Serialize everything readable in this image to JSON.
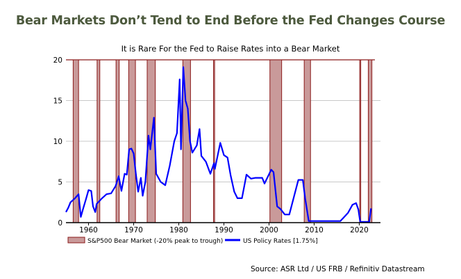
{
  "header": {
    "title": "Bear Markets Don’t Tend to End Before the Fed Changes Course",
    "source": "Source: ASR Ltd / US FRB / Refinitiv Datastream"
  },
  "chart_data": {
    "type": "line",
    "title": "It is Rare For the Fed to Raise Rates into a Bear Market",
    "xlabel": "",
    "ylabel": "",
    "xlim": [
      1955,
      2024.7
    ],
    "ylim": [
      0,
      20
    ],
    "x_ticks": [
      "1960",
      "1970",
      "1980",
      "1990",
      "2000",
      "2010",
      "2020"
    ],
    "y_ticks": [
      "0",
      "5",
      "10",
      "15",
      "20"
    ],
    "grid": true,
    "legend": "bottom",
    "colors": {
      "bear_fill": "#c99a9a",
      "bear_edge": "#8b1a1a",
      "rate_line": "#0000ff",
      "title": "#4d5a3e"
    },
    "bear_markets": {
      "name": "S&P500 Bear Market (-20% peak to trough)",
      "periods": [
        [
          1956.6,
          1957.8
        ],
        [
          1961.9,
          1962.5
        ],
        [
          1966.1,
          1966.8
        ],
        [
          1968.9,
          1970.4
        ],
        [
          1973.0,
          1974.8
        ],
        [
          1980.9,
          1982.6
        ],
        [
          1987.7,
          1987.95
        ],
        [
          2000.2,
          2002.8
        ],
        [
          2007.8,
          2009.2
        ],
        [
          2020.1,
          2020.3
        ],
        [
          2022.0,
          2022.8
        ]
      ]
    },
    "series": [
      {
        "name": "US Policy Rates [1.75%]",
        "points": [
          [
            1955,
            1.3
          ],
          [
            1955.5,
            1.8
          ],
          [
            1956,
            2.5
          ],
          [
            1957,
            3.0
          ],
          [
            1957.8,
            3.5
          ],
          [
            1958.3,
            0.7
          ],
          [
            1958.8,
            1.7
          ],
          [
            1959.5,
            3.0
          ],
          [
            1960,
            4.0
          ],
          [
            1960.6,
            3.9
          ],
          [
            1961,
            2.0
          ],
          [
            1961.5,
            1.3
          ],
          [
            1961.8,
            2.3
          ],
          [
            1962.5,
            2.7
          ],
          [
            1963,
            3.0
          ],
          [
            1964,
            3.5
          ],
          [
            1965,
            3.6
          ],
          [
            1966,
            4.5
          ],
          [
            1966.7,
            5.7
          ],
          [
            1967.3,
            3.9
          ],
          [
            1968,
            6.0
          ],
          [
            1968.5,
            5.9
          ],
          [
            1969,
            9.0
          ],
          [
            1969.5,
            9.1
          ],
          [
            1970,
            8.5
          ],
          [
            1970.5,
            6.0
          ],
          [
            1971,
            3.8
          ],
          [
            1971.6,
            5.5
          ],
          [
            1972,
            3.3
          ],
          [
            1972.6,
            5.0
          ],
          [
            1973.3,
            10.7
          ],
          [
            1973.7,
            9.0
          ],
          [
            1974.5,
            12.9
          ],
          [
            1975,
            6.0
          ],
          [
            1976,
            5.0
          ],
          [
            1977,
            4.6
          ],
          [
            1978,
            7.0
          ],
          [
            1979,
            10.0
          ],
          [
            1979.6,
            11.0
          ],
          [
            1980.2,
            17.6
          ],
          [
            1980.5,
            9.0
          ],
          [
            1981,
            19.1
          ],
          [
            1981.5,
            15.0
          ],
          [
            1982,
            14.0
          ],
          [
            1982.5,
            10.0
          ],
          [
            1983,
            8.6
          ],
          [
            1984,
            9.5
          ],
          [
            1984.6,
            11.5
          ],
          [
            1985,
            8.2
          ],
          [
            1986,
            7.5
          ],
          [
            1987,
            6.0
          ],
          [
            1987.8,
            7.3
          ],
          [
            1988,
            6.6
          ],
          [
            1989.2,
            9.8
          ],
          [
            1990,
            8.3
          ],
          [
            1990.8,
            8.0
          ],
          [
            1991.5,
            5.8
          ],
          [
            1992.3,
            3.8
          ],
          [
            1993,
            3.0
          ],
          [
            1994,
            3.0
          ],
          [
            1995,
            5.9
          ],
          [
            1996,
            5.4
          ],
          [
            1997,
            5.5
          ],
          [
            1998.5,
            5.5
          ],
          [
            1999,
            4.8
          ],
          [
            2000.5,
            6.5
          ],
          [
            2001,
            6.2
          ],
          [
            2001.8,
            2.0
          ],
          [
            2002.5,
            1.7
          ],
          [
            2003.5,
            1.0
          ],
          [
            2004.5,
            1.0
          ],
          [
            2006.5,
            5.25
          ],
          [
            2007.5,
            5.25
          ],
          [
            2008,
            3.0
          ],
          [
            2008.8,
            0.2
          ],
          [
            2015.8,
            0.2
          ],
          [
            2016.5,
            0.6
          ],
          [
            2017.5,
            1.2
          ],
          [
            2018.5,
            2.2
          ],
          [
            2019.3,
            2.4
          ],
          [
            2019.8,
            1.6
          ],
          [
            2020.2,
            0.1
          ],
          [
            2022.2,
            0.1
          ],
          [
            2022.6,
            1.75
          ]
        ]
      }
    ]
  }
}
